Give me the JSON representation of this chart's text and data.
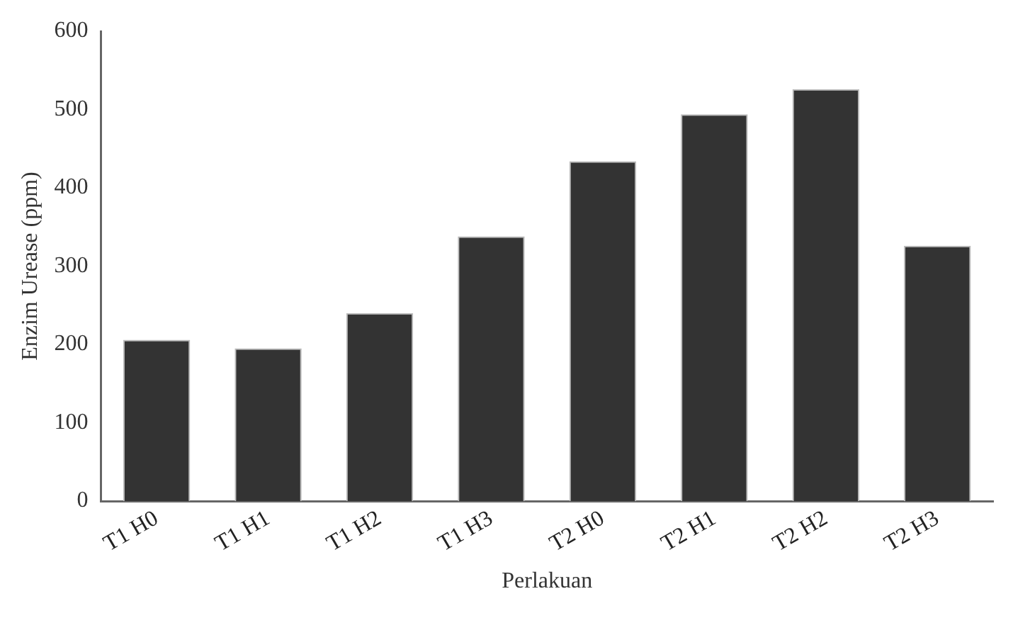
{
  "chart_data": {
    "type": "bar",
    "xlabel": "Perlakuan",
    "ylabel": "Enzim Urease (ppm)",
    "categories": [
      "T1 H0",
      "T1 H1",
      "T1 H2",
      "T1 H3",
      "T2 H0",
      "T2 H1",
      "T2 H2",
      "T2 H3"
    ],
    "values": [
      206,
      195,
      240,
      338,
      434,
      494,
      526,
      326
    ],
    "color": "#333333",
    "ylim": [
      0,
      600
    ],
    "yticks": [
      0,
      100,
      200,
      300,
      400,
      500,
      600
    ],
    "grid": false
  }
}
